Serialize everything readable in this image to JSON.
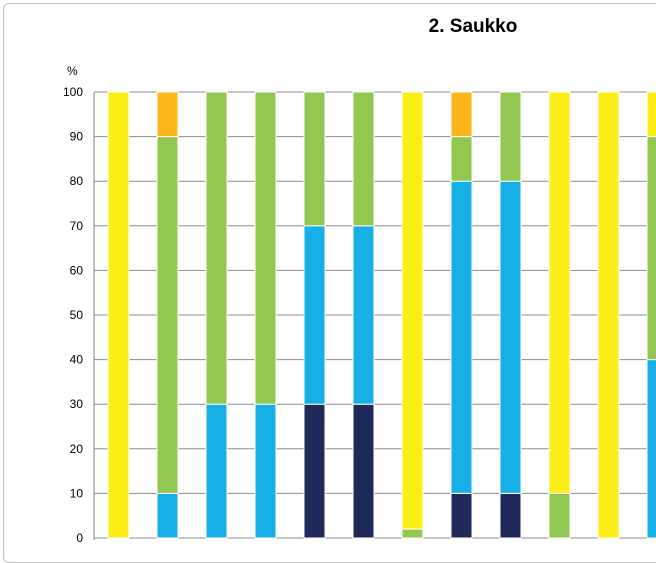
{
  "chart_data": {
    "type": "bar",
    "stacked": true,
    "title": "2. Saukko",
    "ylabel": "%",
    "ylim": [
      0,
      100
    ],
    "yticks": [
      "0",
      "10",
      "20",
      "30",
      "40",
      "50",
      "60",
      "70",
      "80",
      "90",
      "100"
    ],
    "grid": true,
    "series_colors": [
      "#1f2a5a",
      "#17b0e6",
      "#92c750",
      "#fdee16",
      "#fdb61b"
    ],
    "bars": [
      [
        0,
        0,
        0,
        100,
        0
      ],
      [
        0,
        10,
        80,
        0,
        10
      ],
      [
        0,
        30,
        70,
        0,
        0
      ],
      [
        0,
        30,
        70,
        0,
        0
      ],
      [
        30,
        40,
        30,
        0,
        0
      ],
      [
        30,
        40,
        30,
        0,
        0
      ],
      [
        0,
        0,
        2,
        98,
        0
      ],
      [
        10,
        70,
        10,
        0,
        10
      ],
      [
        10,
        70,
        20,
        0,
        0
      ],
      [
        0,
        0,
        10,
        90,
        0
      ],
      [
        0,
        0,
        0,
        100,
        0
      ],
      [
        0,
        40,
        50,
        10,
        0
      ]
    ]
  }
}
